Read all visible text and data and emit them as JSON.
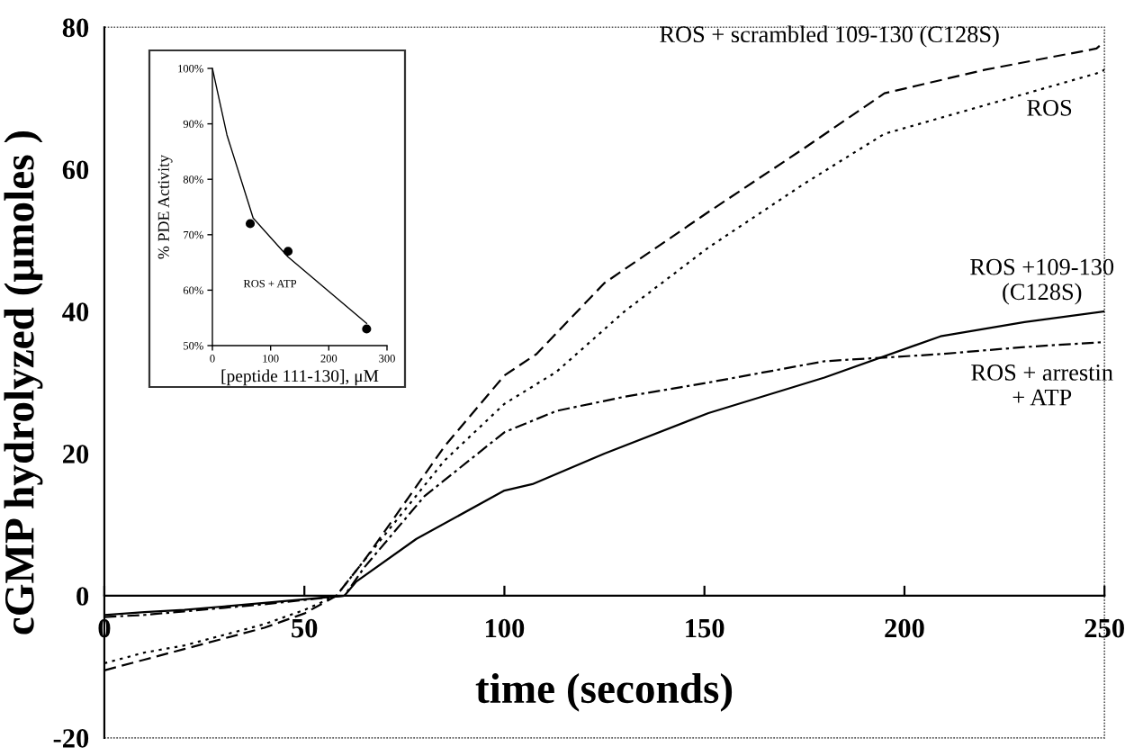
{
  "chart_data": [
    {
      "type": "line",
      "xlabel": "time (seconds)",
      "ylabel": "cGMP hydrolyzed (μmoles )",
      "xlim": [
        0,
        250
      ],
      "ylim": [
        -20,
        80
      ],
      "xticks": [
        0,
        50,
        100,
        150,
        200,
        250
      ],
      "yticks": [
        -20,
        0,
        20,
        40,
        60,
        80
      ],
      "grid": false,
      "series": [
        {
          "name": "ROS + scrambled 109-130 (C128S)",
          "color": "#000000",
          "line_style": "dashed",
          "x": [
            0,
            10,
            20,
            30,
            40,
            50,
            58,
            65,
            75,
            85,
            100,
            108,
            125,
            151,
            175,
            195,
            220,
            248,
            250
          ],
          "values": [
            -10.5,
            -9,
            -7.5,
            -6,
            -4.5,
            -2.5,
            0,
            5,
            13,
            21,
            31,
            34,
            44,
            54,
            63,
            70.7,
            74,
            77,
            78
          ]
        },
        {
          "name": "ROS",
          "color": "#000000",
          "line_style": "dotted",
          "x": [
            0,
            10,
            20,
            30,
            40,
            50,
            58,
            65,
            75,
            85,
            100,
            113,
            130,
            151,
            175,
            195,
            220,
            248,
            250
          ],
          "values": [
            -9.5,
            -8,
            -7,
            -5.5,
            -4,
            -2,
            0,
            5,
            12,
            19,
            27,
            31.5,
            40,
            49,
            58,
            65,
            69,
            73.5,
            74
          ]
        },
        {
          "name": "ROS +109-130\n(C128S)",
          "color": "#000000",
          "line_style": "solid",
          "x": [
            0,
            10,
            20,
            30,
            40,
            50,
            60,
            63,
            78,
            100,
            107,
            125,
            151,
            180,
            209,
            230,
            250
          ],
          "values": [
            -2.7,
            -2.3,
            -2,
            -1.5,
            -1,
            -0.5,
            0,
            2,
            8,
            14.8,
            15.7,
            20,
            25.7,
            30.7,
            36.5,
            38.5,
            40
          ]
        },
        {
          "name": "ROS + arrestin\n+ ATP",
          "color": "#000000",
          "line_style": "dashdot",
          "x": [
            0,
            10,
            20,
            30,
            40,
            50,
            60,
            65,
            80,
            100,
            113,
            130,
            151,
            180,
            209,
            230,
            250
          ],
          "values": [
            -3,
            -2.7,
            -2.2,
            -1.7,
            -1.2,
            -0.6,
            0,
            4,
            14,
            23,
            26,
            28,
            30,
            33,
            34,
            35,
            35.7
          ]
        }
      ]
    },
    {
      "type": "line",
      "xlabel": "[peptide 111-130], μM",
      "ylabel": "% PDE Activity",
      "xlim": [
        0,
        300
      ],
      "ylim": [
        50,
        100
      ],
      "xticks": [
        0,
        100,
        200,
        300
      ],
      "yticks": [
        {
          "value": 50,
          "label": "50%"
        },
        {
          "value": 60,
          "label": "60%"
        },
        {
          "value": 70,
          "label": "70%"
        },
        {
          "value": 80,
          "label": "80%"
        },
        {
          "value": 90,
          "label": "90%"
        },
        {
          "value": 100,
          "label": "100%"
        }
      ],
      "grid": false,
      "series": [
        {
          "color": "#000000",
          "line_style": "solid",
          "x": [
            0,
            25,
            70,
            130,
            265
          ],
          "values": [
            100,
            88,
            73,
            66,
            54
          ]
        },
        {
          "type": "scatter",
          "color": "#000000",
          "marker": "circle",
          "x": [
            65,
            130,
            265
          ],
          "values": [
            72,
            67,
            53
          ]
        }
      ],
      "annotations": [
        "ROS + ATP"
      ]
    }
  ]
}
